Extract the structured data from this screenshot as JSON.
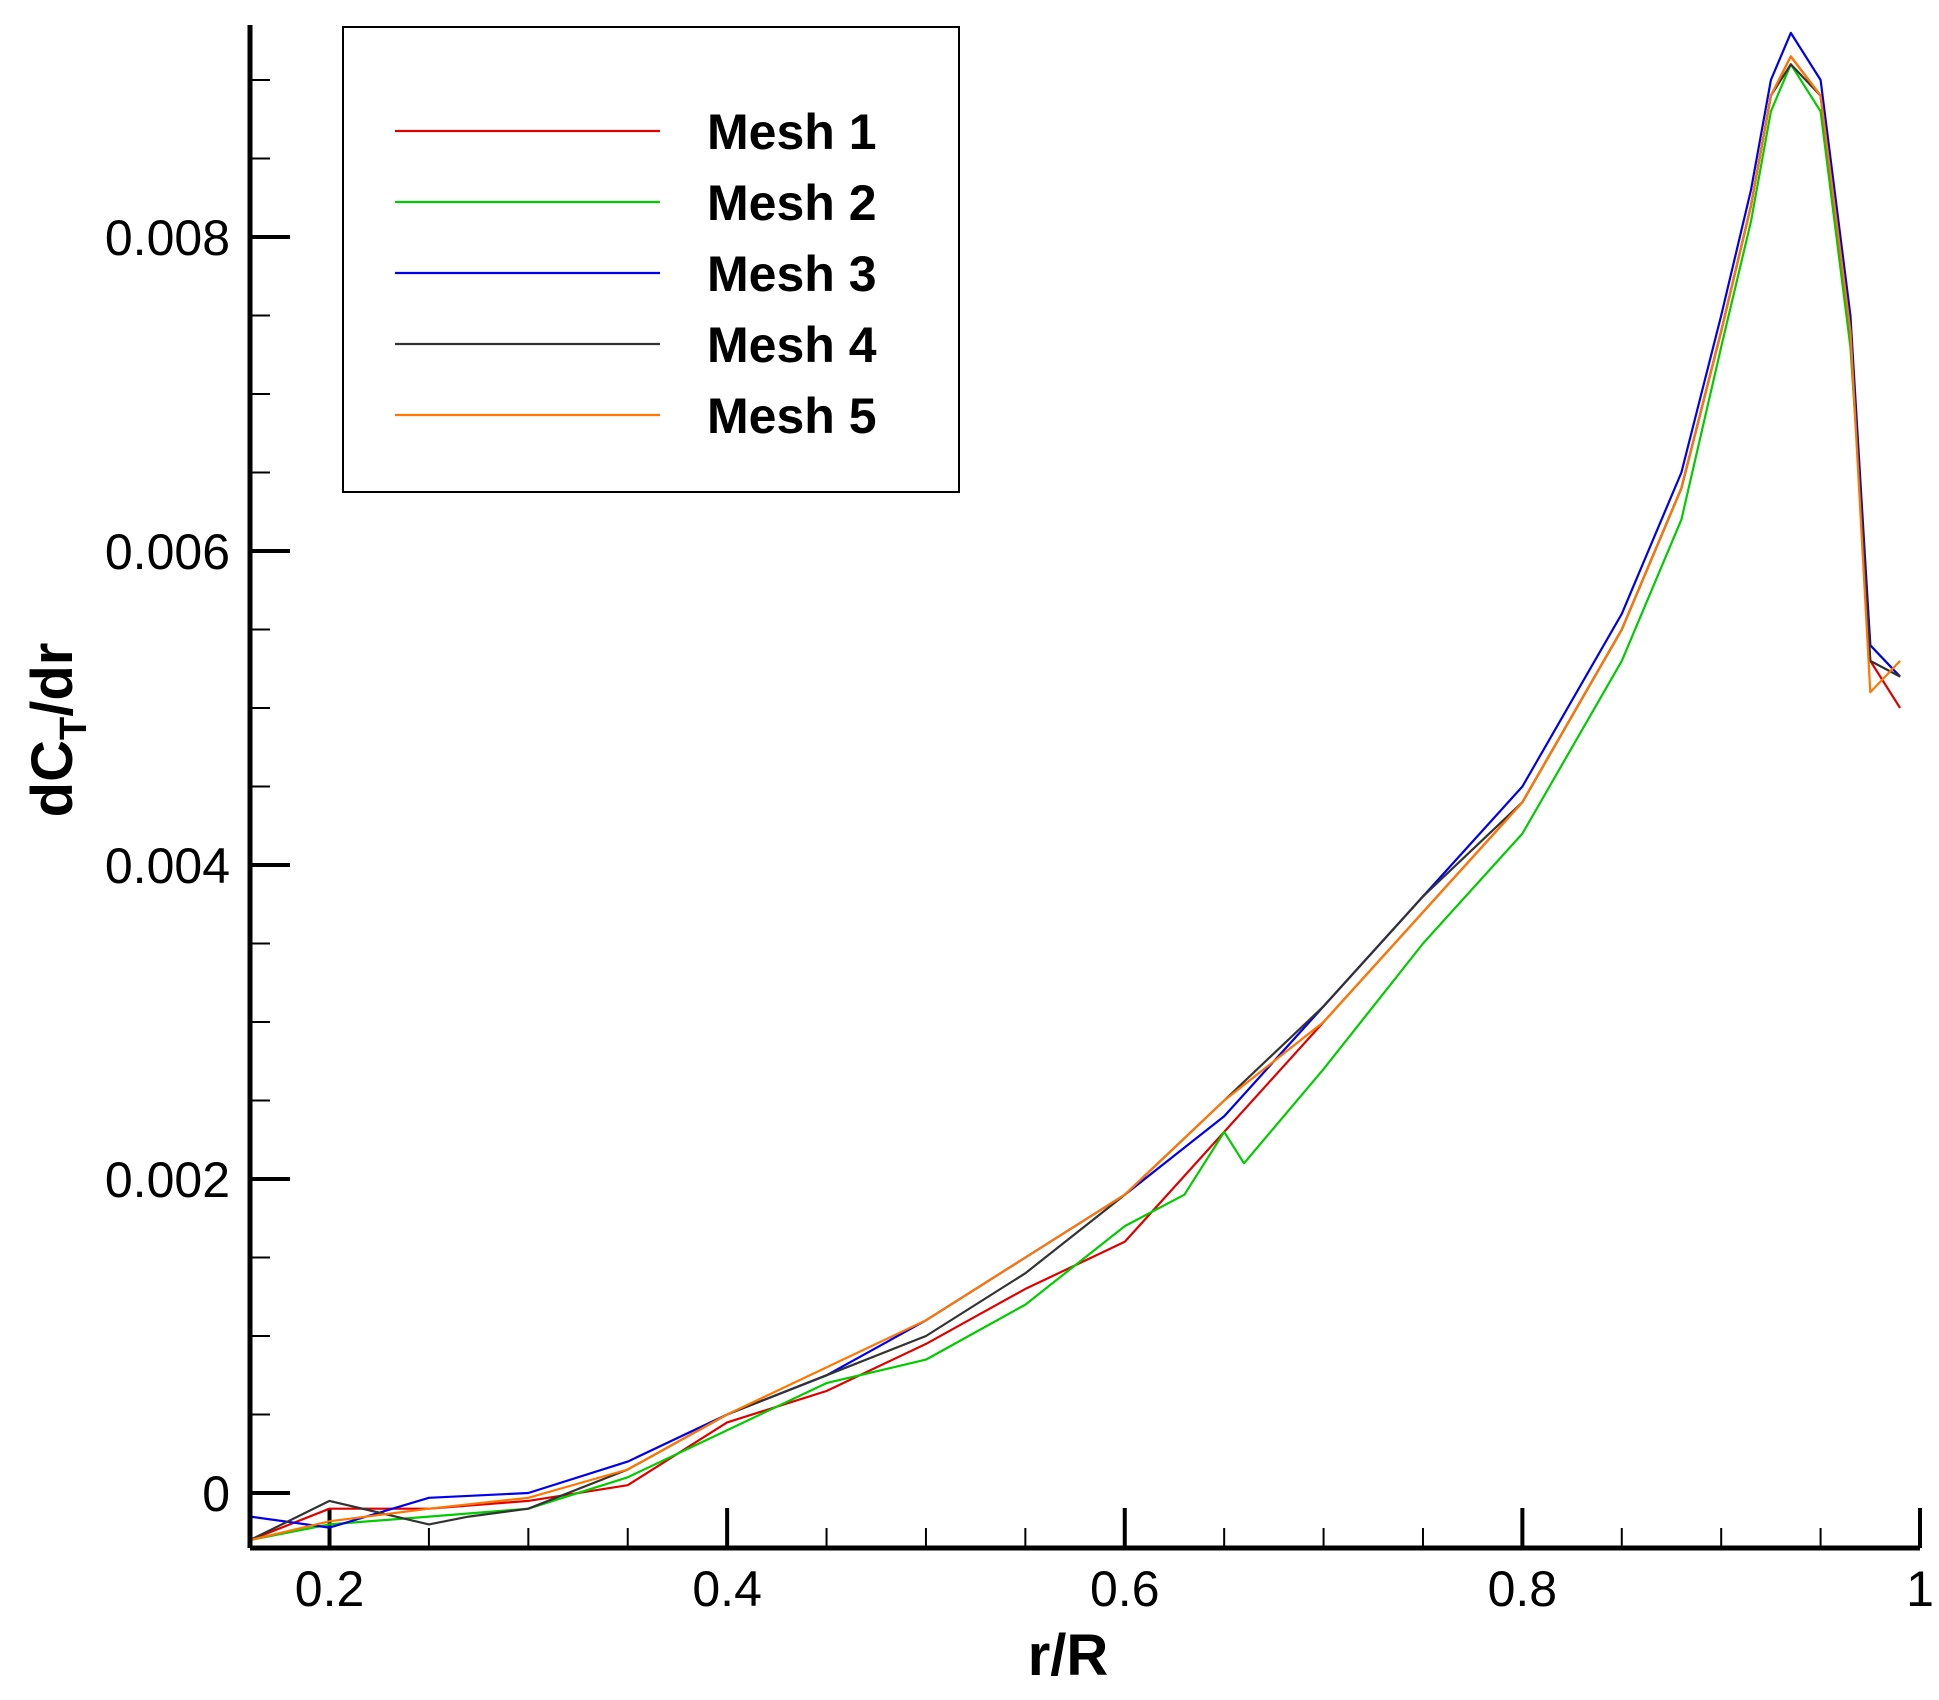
{
  "chart_data": {
    "type": "line",
    "xlabel": "r/R",
    "ylabel_main": "dC",
    "ylabel_sub": "T",
    "ylabel_tail": "/dr",
    "xlim": [
      0.16,
      1.0
    ],
    "ylim": [
      -0.00035,
      0.00935
    ],
    "xticks": [
      {
        "value": 0.2,
        "label": "0.2"
      },
      {
        "value": 0.4,
        "label": "0.4"
      },
      {
        "value": 0.6,
        "label": "0.6"
      },
      {
        "value": 0.8,
        "label": "0.8"
      },
      {
        "value": 1.0,
        "label": "1"
      }
    ],
    "yticks": [
      {
        "value": 0.0,
        "label": "0"
      },
      {
        "value": 0.002,
        "label": "0.002"
      },
      {
        "value": 0.004,
        "label": "0.004"
      },
      {
        "value": 0.006,
        "label": "0.006"
      },
      {
        "value": 0.008,
        "label": "0.008"
      }
    ],
    "x_minor_step": 0.05,
    "y_minor_step": 0.0005,
    "grid": false,
    "legend_position": "top-left",
    "series": [
      {
        "name": "Mesh 1",
        "color": "#e00000",
        "x": [
          0.16,
          0.2,
          0.25,
          0.3,
          0.35,
          0.4,
          0.45,
          0.5,
          0.55,
          0.6,
          0.65,
          0.7,
          0.75,
          0.8,
          0.85,
          0.88,
          0.9,
          0.915,
          0.925,
          0.935,
          0.95,
          0.965,
          0.975,
          0.99
        ],
        "y": [
          -0.0003,
          -0.0001,
          -0.0001,
          -5e-05,
          5e-05,
          0.00045,
          0.00065,
          0.00095,
          0.0013,
          0.0016,
          0.0023,
          0.003,
          0.0037,
          0.0044,
          0.0055,
          0.0064,
          0.0074,
          0.0082,
          0.0089,
          0.00915,
          0.0089,
          0.0074,
          0.0053,
          0.005
        ]
      },
      {
        "name": "Mesh 2",
        "color": "#00cc00",
        "x": [
          0.16,
          0.2,
          0.25,
          0.3,
          0.35,
          0.4,
          0.45,
          0.5,
          0.55,
          0.6,
          0.63,
          0.65,
          0.66,
          0.7,
          0.75,
          0.8,
          0.85,
          0.88,
          0.9,
          0.915,
          0.925,
          0.935,
          0.95,
          0.965,
          0.975,
          0.99
        ],
        "y": [
          -0.0003,
          -0.0002,
          -0.00015,
          -0.0001,
          0.0001,
          0.0004,
          0.0007,
          0.00085,
          0.0012,
          0.0017,
          0.0019,
          0.0023,
          0.0021,
          0.0027,
          0.0035,
          0.0042,
          0.0053,
          0.0062,
          0.0073,
          0.0081,
          0.0088,
          0.0091,
          0.0088,
          0.0073,
          0.0054,
          0.0052
        ]
      },
      {
        "name": "Mesh 3",
        "color": "#0000ee",
        "x": [
          0.16,
          0.2,
          0.25,
          0.3,
          0.35,
          0.4,
          0.45,
          0.5,
          0.55,
          0.6,
          0.65,
          0.7,
          0.75,
          0.8,
          0.85,
          0.88,
          0.9,
          0.915,
          0.925,
          0.935,
          0.95,
          0.965,
          0.975,
          0.99
        ],
        "y": [
          -0.00015,
          -0.00022,
          -3e-05,
          0.0,
          0.0002,
          0.0005,
          0.00075,
          0.0011,
          0.0015,
          0.0019,
          0.0024,
          0.0031,
          0.0038,
          0.0045,
          0.0056,
          0.0065,
          0.0075,
          0.0083,
          0.009,
          0.0093,
          0.009,
          0.0075,
          0.0054,
          0.0052
        ]
      },
      {
        "name": "Mesh 4",
        "color": "#333333",
        "x": [
          0.16,
          0.2,
          0.25,
          0.27,
          0.3,
          0.35,
          0.4,
          0.45,
          0.5,
          0.55,
          0.6,
          0.65,
          0.7,
          0.75,
          0.8,
          0.85,
          0.88,
          0.9,
          0.915,
          0.925,
          0.935,
          0.95,
          0.965,
          0.975,
          0.99
        ],
        "y": [
          -0.0003,
          -5e-05,
          -0.0002,
          -0.00015,
          -0.0001,
          0.00015,
          0.0005,
          0.00075,
          0.001,
          0.0014,
          0.0019,
          0.0025,
          0.0031,
          0.0038,
          0.0044,
          0.0055,
          0.0064,
          0.0074,
          0.0082,
          0.0089,
          0.0091,
          0.0089,
          0.0074,
          0.0053,
          0.0052
        ]
      },
      {
        "name": "Mesh 5",
        "color": "#ff7700",
        "x": [
          0.16,
          0.2,
          0.25,
          0.3,
          0.35,
          0.4,
          0.45,
          0.5,
          0.55,
          0.6,
          0.65,
          0.7,
          0.75,
          0.8,
          0.85,
          0.88,
          0.9,
          0.915,
          0.925,
          0.935,
          0.95,
          0.965,
          0.975,
          0.99
        ],
        "y": [
          -0.0003,
          -0.00018,
          -0.0001,
          -3e-05,
          0.00015,
          0.0005,
          0.0008,
          0.0011,
          0.0015,
          0.0019,
          0.0025,
          0.003,
          0.0037,
          0.0044,
          0.0055,
          0.0064,
          0.0074,
          0.0082,
          0.0089,
          0.00915,
          0.0089,
          0.0074,
          0.0051,
          0.0053
        ]
      }
    ]
  }
}
